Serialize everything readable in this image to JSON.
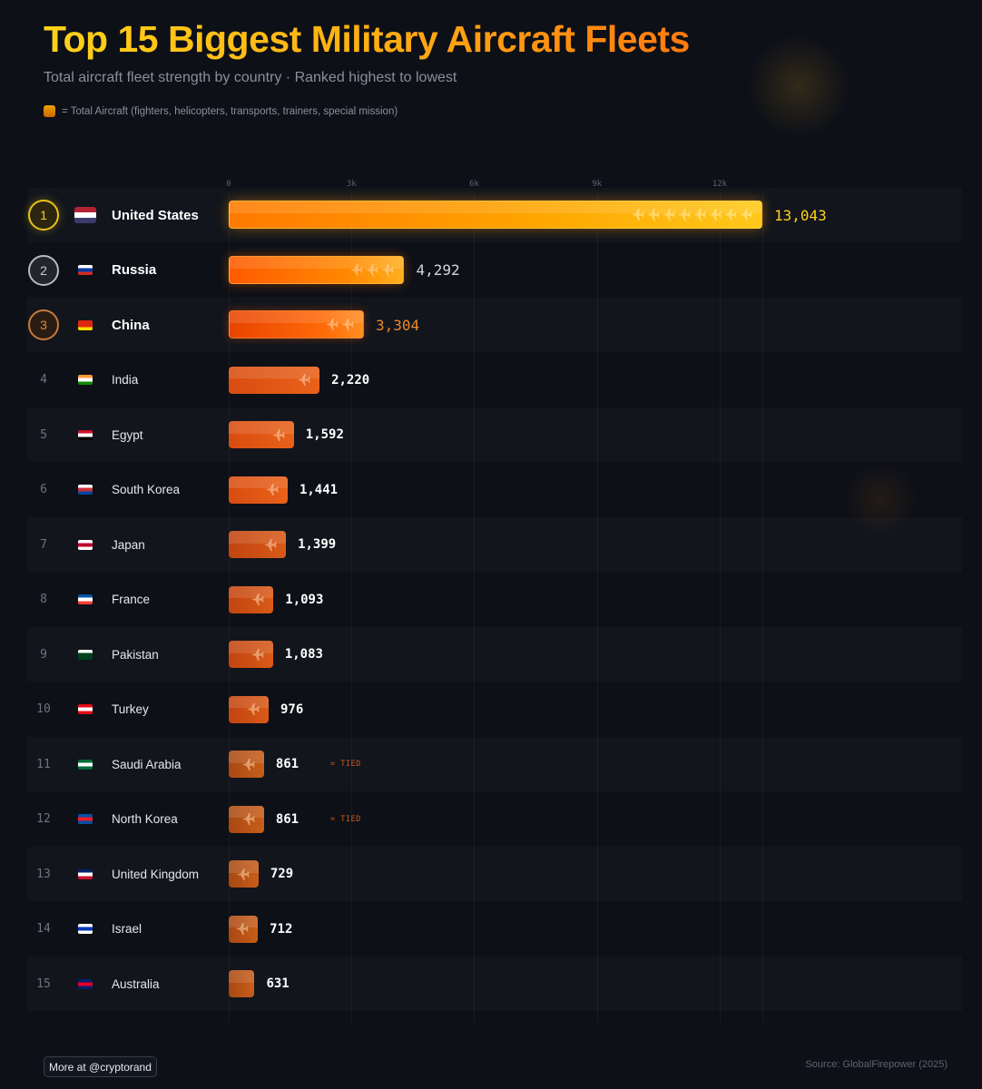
{
  "header": {
    "title": "Top 15 Biggest Military Aircraft Fleets",
    "subtitle": "Total aircraft fleet strength by country · Ranked highest to lowest",
    "legend_text": "= Total Aircraft (fighters, helicopters, transports, trainers, special mission)"
  },
  "footer": {
    "credit": "More at @cryptorand",
    "source": "Source: GlobalFirepower (2025)"
  },
  "colors": {
    "background": "#0d1017",
    "title_gradient": [
      "#ffd21a",
      "#ff7a10"
    ],
    "gold": "#e8c21a",
    "silver": "#b7bac2",
    "bronze": "#c87a3a",
    "bar_orange": "#ff8a00"
  },
  "chart_data": {
    "type": "bar",
    "orientation": "horizontal",
    "title": "Top 15 Biggest Military Aircraft Fleets",
    "subtitle": "Total aircraft fleet strength by country · Ranked highest to lowest",
    "xlim": [
      0,
      13043
    ],
    "x_ticks": [
      0,
      3000,
      6000,
      9000,
      12000
    ],
    "x_tick_labels": [
      "0",
      "3k",
      "6k",
      "9k",
      "12k"
    ],
    "grid": true,
    "tied_label": "= TIED",
    "rows": [
      {
        "rank": "1",
        "country": "United States",
        "value": 13043,
        "value_label": "13,043",
        "flag": [
          "#b22234",
          "#ffffff",
          "#3c3b6e"
        ],
        "tied": false
      },
      {
        "rank": "2",
        "country": "Russia",
        "value": 4292,
        "value_label": "4,292",
        "flag": [
          "#ffffff",
          "#0039a6",
          "#d52b1e"
        ],
        "tied": false
      },
      {
        "rank": "3",
        "country": "China",
        "value": 3304,
        "value_label": "3,304",
        "flag": [
          "#de2910",
          "#de2910",
          "#ffde00"
        ],
        "tied": false
      },
      {
        "rank": "4",
        "country": "India",
        "value": 2220,
        "value_label": "2,220",
        "flag": [
          "#ff9933",
          "#ffffff",
          "#138808"
        ],
        "tied": false
      },
      {
        "rank": "5",
        "country": "Egypt",
        "value": 1592,
        "value_label": "1,592",
        "flag": [
          "#ce1126",
          "#ffffff",
          "#000000"
        ],
        "tied": false
      },
      {
        "rank": "6",
        "country": "South Korea",
        "value": 1441,
        "value_label": "1,441",
        "flag": [
          "#ffffff",
          "#cd2e3a",
          "#0047a0"
        ],
        "tied": false
      },
      {
        "rank": "7",
        "country": "Japan",
        "value": 1399,
        "value_label": "1,399",
        "flag": [
          "#ffffff",
          "#bc002d",
          "#ffffff"
        ],
        "tied": false
      },
      {
        "rank": "8",
        "country": "France",
        "value": 1093,
        "value_label": "1,093",
        "flag": [
          "#0055a4",
          "#ffffff",
          "#ef4135"
        ],
        "tied": false
      },
      {
        "rank": "9",
        "country": "Pakistan",
        "value": 1083,
        "value_label": "1,083",
        "flag": [
          "#ffffff",
          "#01411c",
          "#01411c"
        ],
        "tied": false
      },
      {
        "rank": "10",
        "country": "Turkey",
        "value": 976,
        "value_label": "976",
        "flag": [
          "#e30a17",
          "#ffffff",
          "#e30a17"
        ],
        "tied": false
      },
      {
        "rank": "11",
        "country": "Saudi Arabia",
        "value": 861,
        "value_label": "861",
        "flag": [
          "#006c35",
          "#ffffff",
          "#006c35"
        ],
        "tied": true
      },
      {
        "rank": "12",
        "country": "North Korea",
        "value": 861,
        "value_label": "861",
        "flag": [
          "#024fa2",
          "#ed1c27",
          "#024fa2"
        ],
        "tied": true
      },
      {
        "rank": "13",
        "country": "United Kingdom",
        "value": 729,
        "value_label": "729",
        "flag": [
          "#012169",
          "#ffffff",
          "#c8102e"
        ],
        "tied": false
      },
      {
        "rank": "14",
        "country": "Israel",
        "value": 712,
        "value_label": "712",
        "flag": [
          "#ffffff",
          "#0038b8",
          "#ffffff"
        ],
        "tied": false
      },
      {
        "rank": "15",
        "country": "Australia",
        "value": 631,
        "value_label": "631",
        "flag": [
          "#012169",
          "#e4002b",
          "#012169"
        ],
        "tied": false
      }
    ]
  }
}
